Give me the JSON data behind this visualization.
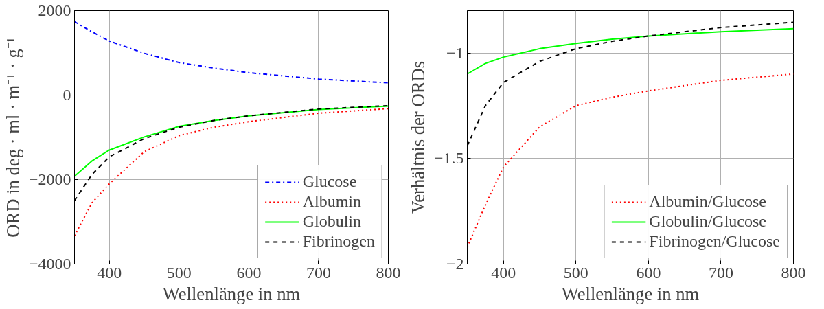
{
  "chart_data": [
    {
      "type": "line",
      "xlabel": "Wellenlänge in nm",
      "ylabel": "ORD in deg · ml · m⁻¹ · g⁻¹",
      "x": [
        350,
        375,
        400,
        450,
        500,
        550,
        600,
        700,
        800
      ],
      "xlim": [
        350,
        800
      ],
      "ylim": [
        -4000,
        2000
      ],
      "xticks": [
        400,
        500,
        600,
        700,
        800
      ],
      "yticks": [
        {
          "value": -4000,
          "label": "−4000"
        },
        {
          "value": -2000,
          "label": "−2000"
        },
        0,
        2000
      ],
      "grid": true,
      "legend": "bottom right",
      "series": [
        {
          "name": "Glucose",
          "color": "#0000ff",
          "line_style": "dashdot",
          "values": [
            1740,
            1500,
            1280,
            990,
            770,
            640,
            530,
            380,
            290
          ]
        },
        {
          "name": "Albumin",
          "color": "#ff0000",
          "line_style": "dotted",
          "values": [
            -3330,
            -2550,
            -2100,
            -1340,
            -960,
            -760,
            -630,
            -430,
            -320
          ]
        },
        {
          "name": "Globulin",
          "color": "#00ff00",
          "line_style": "solid",
          "values": [
            -1920,
            -1560,
            -1300,
            -990,
            -740,
            -600,
            -490,
            -340,
            -260
          ]
        },
        {
          "name": "Fibrinogen",
          "color": "#000000",
          "line_style": "dashed",
          "values": [
            -2500,
            -1880,
            -1460,
            -1030,
            -760,
            -600,
            -490,
            -330,
            -250
          ]
        }
      ]
    },
    {
      "type": "line",
      "xlabel": "Wellenlänge in nm",
      "ylabel": "Verhältnis der ORDs",
      "x": [
        350,
        375,
        400,
        450,
        500,
        550,
        600,
        700,
        800
      ],
      "xlim": [
        350,
        800
      ],
      "ylim": [
        -2,
        -0.8
      ],
      "xticks": [
        400,
        500,
        600,
        700,
        800
      ],
      "yticks": [
        {
          "value": -2,
          "label": "−2"
        },
        {
          "value": -1.5,
          "label": "−1.5"
        },
        {
          "value": -1,
          "label": "−1"
        }
      ],
      "grid": true,
      "legend": "bottom right",
      "series": [
        {
          "name": "Albumin/Glucose",
          "color": "#ff0000",
          "line_style": "dotted",
          "values": [
            -1.92,
            -1.72,
            -1.54,
            -1.35,
            -1.25,
            -1.21,
            -1.18,
            -1.13,
            -1.1
          ]
        },
        {
          "name": "Globulin/Glucose",
          "color": "#00ff00",
          "line_style": "solid",
          "values": [
            -1.1,
            -1.05,
            -1.02,
            -0.98,
            -0.955,
            -0.935,
            -0.92,
            -0.9,
            -0.885
          ]
        },
        {
          "name": "Fibrinogen/Glucose",
          "color": "#000000",
          "line_style": "dashed",
          "values": [
            -1.44,
            -1.25,
            -1.14,
            -1.04,
            -0.98,
            -0.945,
            -0.92,
            -0.88,
            -0.855
          ]
        }
      ]
    }
  ]
}
